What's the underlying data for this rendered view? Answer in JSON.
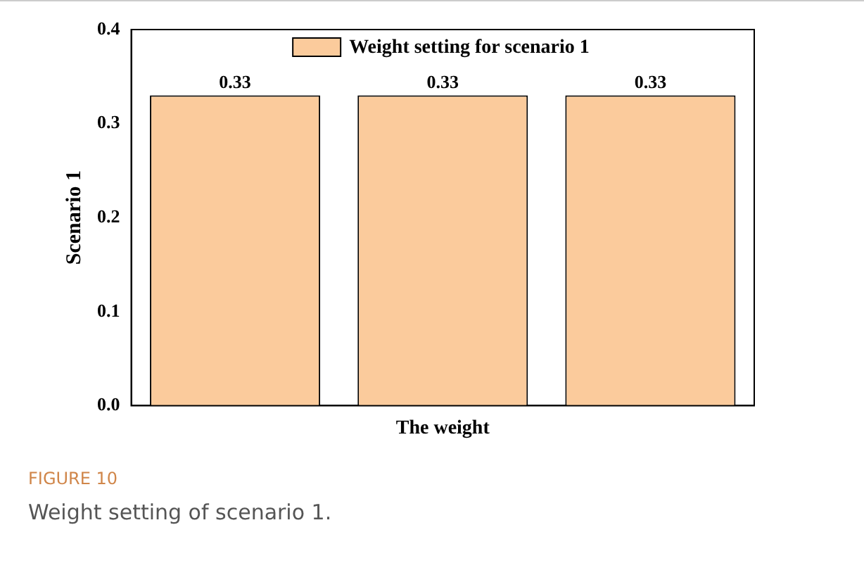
{
  "chart_data": {
    "type": "bar",
    "xlabel": "The weight",
    "ylabel": "Scenario 1",
    "categories": [
      null,
      null,
      null
    ],
    "series": [
      {
        "name": "Weight setting for scenario 1",
        "color": "#fbcb9c",
        "values": [
          0.33,
          0.33,
          0.33
        ]
      }
    ],
    "ylim": [
      0,
      0.4
    ],
    "yticks": [
      {
        "value": 0,
        "label": "0.0"
      },
      {
        "value": 0.1,
        "label": "0.1"
      },
      {
        "value": 0.2,
        "label": "0.2"
      },
      {
        "value": 0.3,
        "label": "0.3"
      },
      {
        "value": 0.4,
        "label": "0.4"
      }
    ],
    "data_labels": true,
    "legend": "top",
    "grid": false,
    "annotations": [
      "FIGURE 10",
      "Weight setting of scenario 1."
    ]
  }
}
